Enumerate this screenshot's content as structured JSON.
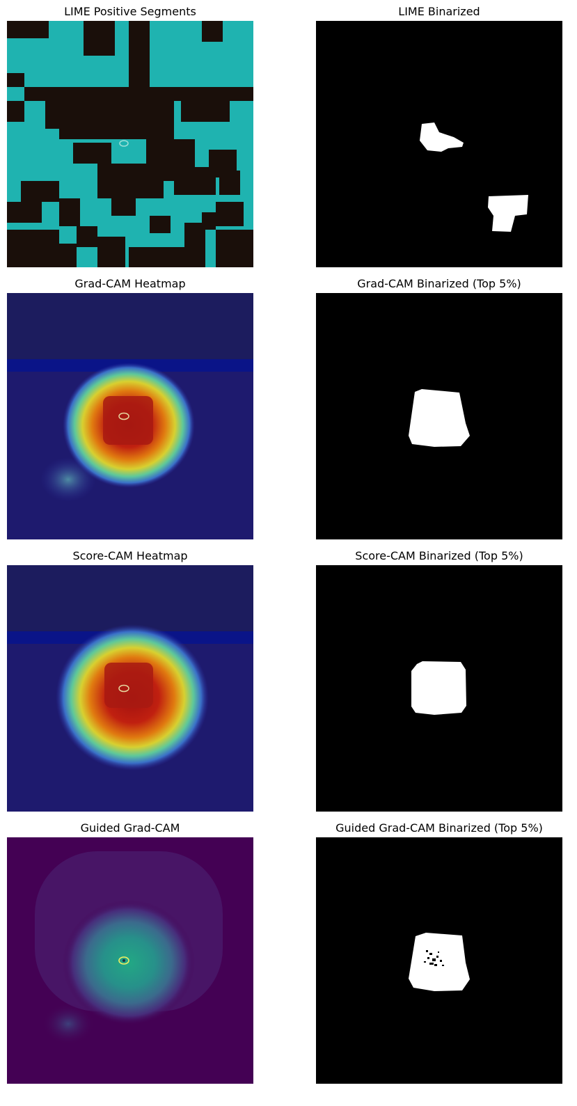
{
  "figure": {
    "rows": [
      {
        "left": {
          "title": "LIME Positive Segments",
          "kind": "lime-overlay"
        },
        "right": {
          "title": "LIME Binarized",
          "kind": "binary-mask"
        }
      },
      {
        "left": {
          "title": "Grad-CAM Heatmap",
          "kind": "jet-heatmap"
        },
        "right": {
          "title": "Grad-CAM Binarized (Top 5%)",
          "kind": "binary-mask"
        }
      },
      {
        "left": {
          "title": "Score-CAM Heatmap",
          "kind": "jet-heatmap"
        },
        "right": {
          "title": "Score-CAM Binarized (Top 5%)",
          "kind": "binary-mask"
        }
      },
      {
        "left": {
          "title": "Guided Grad-CAM",
          "kind": "viridis-heatmap"
        },
        "right": {
          "title": "Guided Grad-CAM Binarized (Top 5%)",
          "kind": "binary-mask"
        }
      }
    ]
  },
  "colors": {
    "lime_cyan": "#1fb3b0",
    "lime_dark": "#1a0f0a",
    "mask_bg": "#000000",
    "mask_fg": "#ffffff",
    "viridis_bg": "#440154"
  }
}
